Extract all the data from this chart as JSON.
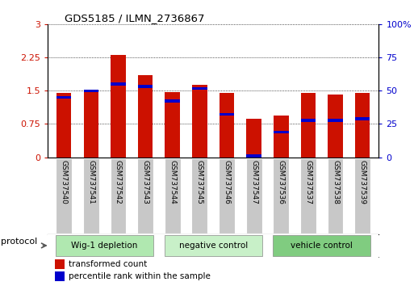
{
  "title": "GDS5185 / ILMN_2736867",
  "samples": [
    "GSM737540",
    "GSM737541",
    "GSM737542",
    "GSM737543",
    "GSM737544",
    "GSM737545",
    "GSM737546",
    "GSM737547",
    "GSM737536",
    "GSM737537",
    "GSM737538",
    "GSM737539"
  ],
  "red_values": [
    1.45,
    1.5,
    2.3,
    1.85,
    1.47,
    1.63,
    1.45,
    0.87,
    0.95,
    1.45,
    1.42,
    1.45
  ],
  "blue_values": [
    1.35,
    1.5,
    1.65,
    1.6,
    1.27,
    1.55,
    0.97,
    0.03,
    0.57,
    0.83,
    0.83,
    0.87
  ],
  "groups": [
    {
      "label": "Wig-1 depletion",
      "start": 0,
      "end": 3,
      "color": "#b0e8b0"
    },
    {
      "label": "negative control",
      "start": 4,
      "end": 7,
      "color": "#c8f0c8"
    },
    {
      "label": "vehicle control",
      "start": 8,
      "end": 11,
      "color": "#80cc80"
    }
  ],
  "ylim_left": [
    0,
    3
  ],
  "ylim_right": [
    0,
    100
  ],
  "yticks_left": [
    0,
    0.75,
    1.5,
    2.25,
    3
  ],
  "ytick_labels_left": [
    "0",
    "0.75",
    "1.5",
    "2.25",
    "3"
  ],
  "yticks_right": [
    0,
    25,
    50,
    75,
    100
  ],
  "ytick_labels_right": [
    "0",
    "25",
    "50",
    "75",
    "100%"
  ],
  "bar_color": "#cc1100",
  "blue_color": "#0000cc",
  "bar_width": 0.55,
  "tick_box_color": "#c8c8c8",
  "protocol_label": "protocol",
  "legend_red": "transformed count",
  "legend_blue": "percentile rank within the sample",
  "label_color_left": "#cc1100",
  "label_color_right": "#0000cc"
}
